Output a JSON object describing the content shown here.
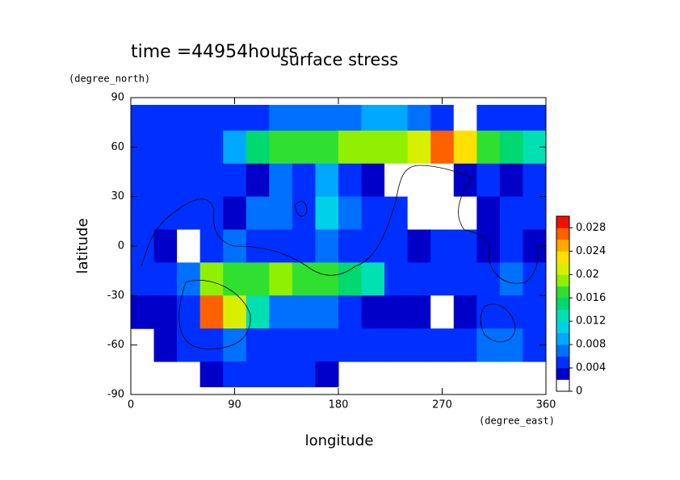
{
  "chart_data": {
    "type": "contour",
    "title": "surface stress",
    "annotation": "time =44954hours",
    "xlabel": "longitude",
    "ylabel": "latitude",
    "x_unit": "(degree_east)",
    "y_unit": "(degree_north)",
    "xlim": [
      0,
      360
    ],
    "ylim": [
      -90,
      90
    ],
    "xticks": [
      0,
      90,
      180,
      270,
      360
    ],
    "yticks": [
      -90,
      -60,
      -30,
      0,
      30,
      60,
      90
    ],
    "x": [
      10,
      30,
      50,
      70,
      90,
      110,
      130,
      150,
      170,
      190,
      210,
      230,
      250,
      270,
      290,
      310,
      330,
      350
    ],
    "y": [
      80,
      60,
      40,
      20,
      0,
      -20,
      -40,
      -60,
      -80
    ],
    "z": [
      [
        0.005,
        0.005,
        0.005,
        0.005,
        0.005,
        0.005,
        0.006,
        0.006,
        0.006,
        0.007,
        0.008,
        0.008,
        0.007,
        0.004,
        0.001,
        0.004,
        0.005,
        0.005
      ],
      [
        0.004,
        0.004,
        0.004,
        0.005,
        0.008,
        0.014,
        0.016,
        0.016,
        0.017,
        0.018,
        0.018,
        0.018,
        0.02,
        0.026,
        0.022,
        0.016,
        0.014,
        0.012
      ],
      [
        0.004,
        0.004,
        0.005,
        0.004,
        0.004,
        0.003,
        0.006,
        0.005,
        0.008,
        0.004,
        0.003,
        0.001,
        0.001,
        0.001,
        0.003,
        0.004,
        0.003,
        0.004
      ],
      [
        0.004,
        0.004,
        0.004,
        0.004,
        0.003,
        0.006,
        0.007,
        0.005,
        0.01,
        0.007,
        0.004,
        0.004,
        0.001,
        0.001,
        0.001,
        0.003,
        0.004,
        0.004
      ],
      [
        0.004,
        0.003,
        0.001,
        0.004,
        0.006,
        0.004,
        0.005,
        0.005,
        0.006,
        0.004,
        0.004,
        0.004,
        0.003,
        0.004,
        0.005,
        0.002,
        0.004,
        0.003
      ],
      [
        0.004,
        0.004,
        0.006,
        0.018,
        0.017,
        0.016,
        0.018,
        0.017,
        0.016,
        0.014,
        0.012,
        0.005,
        0.004,
        0.005,
        0.005,
        0.005,
        0.007,
        0.005
      ],
      [
        0.003,
        0.003,
        0.005,
        0.026,
        0.02,
        0.012,
        0.007,
        0.006,
        0.006,
        0.004,
        0.003,
        0.003,
        0.003,
        0.001,
        0.002,
        0.005,
        0.005,
        0.004
      ],
      [
        null,
        0.003,
        0.005,
        0.005,
        0.006,
        0.005,
        0.004,
        0.004,
        0.004,
        0.004,
        0.005,
        0.005,
        0.005,
        0.005,
        0.004,
        0.006,
        0.006,
        0.005
      ],
      [
        null,
        null,
        null,
        0.003,
        0.004,
        0.004,
        0.004,
        0.004,
        0.003,
        null,
        null,
        null,
        null,
        null,
        null,
        null,
        null,
        null
      ]
    ],
    "colorbar": {
      "lim": [
        0,
        0.03
      ],
      "ticks": [
        0,
        0.004,
        0.008,
        0.012,
        0.016,
        0.02,
        0.024,
        0.028
      ],
      "colors": [
        "#ffffff",
        "#0000c8",
        "#0030ff",
        "#0070ff",
        "#00a8ff",
        "#00d0e8",
        "#00e0b0",
        "#00d870",
        "#30e030",
        "#90f000",
        "#d8f000",
        "#ffe000",
        "#ffa800",
        "#ff6000",
        "#f01000"
      ]
    }
  }
}
